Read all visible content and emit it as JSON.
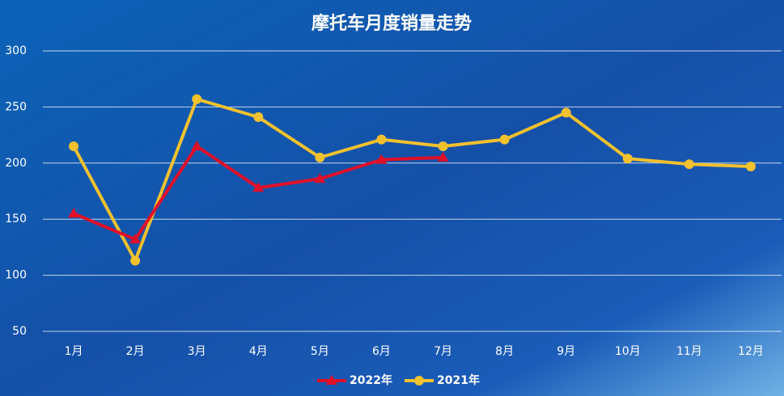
{
  "chart_data": {
    "type": "line",
    "title": "摩托车月度销量走势",
    "categories": [
      "1月",
      "2月",
      "3月",
      "4月",
      "5月",
      "6月",
      "7月",
      "8月",
      "9月",
      "10月",
      "11月",
      "12月"
    ],
    "series": [
      {
        "name": "2022年",
        "color": "#e0102a",
        "marker": "triangle",
        "values": [
          155,
          132,
          215,
          178,
          186,
          203,
          205,
          null,
          null,
          null,
          null,
          null
        ]
      },
      {
        "name": "2021年",
        "color": "#f2c12e",
        "marker": "circle",
        "values": [
          215,
          113,
          257,
          241,
          205,
          221,
          215,
          221,
          245,
          204,
          199,
          197
        ]
      }
    ],
    "ylim": [
      50,
      300
    ],
    "yticks": [
      50,
      100,
      150,
      200,
      250,
      300
    ],
    "grid": true,
    "legend": "bottom"
  }
}
